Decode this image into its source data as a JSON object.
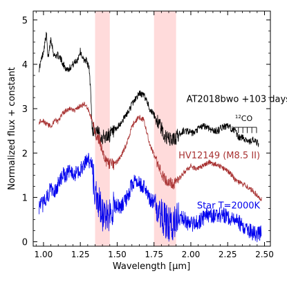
{
  "chart_data": {
    "type": "line",
    "xlabel": "Wavelength [μm]",
    "ylabel": "Normalized flux + constant",
    "xlim": [
      0.93,
      2.54
    ],
    "ylim": [
      -0.1,
      5.2
    ],
    "xticks": [
      "1.00",
      "1.25",
      "1.50",
      "1.75",
      "2.00",
      "2.25",
      "2.50"
    ],
    "xtick_values": [
      1.0,
      1.25,
      1.5,
      1.75,
      2.0,
      2.25,
      2.5
    ],
    "yticks": [
      "0",
      "1",
      "2",
      "3",
      "4",
      "5"
    ],
    "ytick_values": [
      0,
      1,
      2,
      3,
      4,
      5
    ],
    "grid": false,
    "shaded_regions": [
      {
        "x0": 1.35,
        "x1": 1.45,
        "color": "#ffcfcf"
      },
      {
        "x0": 1.75,
        "x1": 1.9,
        "color": "#ffcfcf"
      }
    ],
    "annotations": [
      {
        "text": "AT2018bwo +103 days",
        "x": 1.97,
        "y": 3.15,
        "color": "#000000"
      },
      {
        "text": "12CO",
        "x": 2.3,
        "y": 2.72,
        "color": "#000000",
        "sup": "12",
        "main": "CO"
      },
      {
        "text": "HV12149 (M8.5 II)",
        "x": 2.47,
        "y": 1.88,
        "color": "#a83232"
      },
      {
        "text": "Star T=2000K",
        "x": 2.47,
        "y": 0.75,
        "color": "#0000ee"
      }
    ],
    "co_bandheads": [
      2.294,
      2.323,
      2.353,
      2.383,
      2.414,
      2.446
    ],
    "series": [
      {
        "color": "#000000",
        "noise": 0.08,
        "x": [
          0.97,
          1.0,
          1.02,
          1.03,
          1.05,
          1.07,
          1.1,
          1.12,
          1.15,
          1.17,
          1.2,
          1.23,
          1.25,
          1.27,
          1.29,
          1.31,
          1.32,
          1.33,
          1.35,
          1.38,
          1.41,
          1.44,
          1.47,
          1.5,
          1.53,
          1.55,
          1.58,
          1.6,
          1.63,
          1.65,
          1.68,
          1.7,
          1.72,
          1.75,
          1.78,
          1.8,
          1.82,
          1.85,
          1.88,
          1.9,
          1.93,
          1.95,
          1.98,
          2.0,
          2.03,
          2.05,
          2.08,
          2.1,
          2.13,
          2.15,
          2.18,
          2.2,
          2.22,
          2.25,
          2.28,
          2.3,
          2.32,
          2.35,
          2.38,
          2.4,
          2.42,
          2.44,
          2.46
        ],
        "y": [
          3.9,
          4.3,
          4.7,
          4.1,
          4.6,
          4.2,
          4.2,
          4.1,
          3.9,
          3.9,
          4.0,
          4.1,
          4.3,
          4.1,
          4.1,
          3.9,
          3.4,
          2.55,
          2.5,
          2.4,
          2.35,
          2.4,
          2.45,
          2.55,
          2.7,
          2.8,
          2.95,
          3.1,
          3.25,
          3.35,
          3.3,
          3.2,
          3.0,
          2.85,
          2.7,
          2.55,
          2.4,
          2.3,
          2.3,
          2.35,
          2.45,
          2.5,
          2.5,
          2.45,
          2.45,
          2.55,
          2.6,
          2.6,
          2.55,
          2.5,
          2.5,
          2.55,
          2.6,
          2.6,
          2.55,
          2.5,
          2.35,
          2.35,
          2.3,
          2.25,
          2.3,
          2.25,
          2.2
        ]
      },
      {
        "color": "#a83232",
        "noise": 0.06,
        "x": [
          0.97,
          0.99,
          1.02,
          1.05,
          1.08,
          1.1,
          1.13,
          1.15,
          1.18,
          1.2,
          1.23,
          1.25,
          1.28,
          1.3,
          1.33,
          1.35,
          1.38,
          1.4,
          1.42,
          1.45,
          1.48,
          1.5,
          1.53,
          1.55,
          1.58,
          1.6,
          1.63,
          1.65,
          1.68,
          1.7,
          1.72,
          1.75,
          1.78,
          1.8,
          1.83,
          1.85,
          1.88,
          1.9,
          1.93,
          1.95,
          1.98,
          2.0,
          2.03,
          2.05,
          2.08,
          2.1,
          2.13,
          2.15,
          2.18,
          2.2,
          2.22,
          2.25,
          2.28,
          2.3,
          2.32,
          2.35,
          2.38,
          2.4,
          2.42,
          2.45,
          2.48
        ],
        "y": [
          2.7,
          2.75,
          2.65,
          2.6,
          2.75,
          2.7,
          2.9,
          2.95,
          3.0,
          2.95,
          3.0,
          3.05,
          3.1,
          3.0,
          2.75,
          2.45,
          2.3,
          2.05,
          1.85,
          1.75,
          1.75,
          1.8,
          1.95,
          2.1,
          2.35,
          2.6,
          2.75,
          2.8,
          2.75,
          2.5,
          2.2,
          1.95,
          1.7,
          1.55,
          1.4,
          1.35,
          1.3,
          1.35,
          1.45,
          1.55,
          1.65,
          1.7,
          1.65,
          1.65,
          1.7,
          1.75,
          1.8,
          1.75,
          1.75,
          1.7,
          1.65,
          1.6,
          1.5,
          1.4,
          1.35,
          1.3,
          1.25,
          1.2,
          1.15,
          1.05,
          0.95
        ]
      },
      {
        "color": "#0000ee",
        "noise": 0.18,
        "x": [
          0.97,
          1.0,
          1.03,
          1.05,
          1.08,
          1.1,
          1.13,
          1.15,
          1.18,
          1.2,
          1.23,
          1.25,
          1.27,
          1.3,
          1.33,
          1.35,
          1.38,
          1.4,
          1.42,
          1.45,
          1.48,
          1.5,
          1.53,
          1.55,
          1.58,
          1.6,
          1.63,
          1.65,
          1.68,
          1.7,
          1.72,
          1.75,
          1.78,
          1.8,
          1.82,
          1.85,
          1.88,
          1.9,
          1.93,
          1.95,
          1.98,
          2.0,
          2.03,
          2.05,
          2.08,
          2.1,
          2.13,
          2.15,
          2.18,
          2.2,
          2.22,
          2.25,
          2.28,
          2.3,
          2.32,
          2.35,
          2.38,
          2.4,
          2.42,
          2.45,
          2.48
        ],
        "y": [
          0.8,
          0.85,
          1.05,
          1.2,
          1.15,
          1.3,
          1.5,
          1.5,
          1.6,
          1.5,
          1.55,
          1.6,
          1.75,
          1.9,
          1.7,
          1.1,
          0.85,
          0.6,
          0.55,
          0.65,
          0.85,
          0.8,
          0.8,
          0.9,
          1.1,
          1.3,
          1.4,
          1.3,
          1.25,
          1.15,
          0.95,
          0.9,
          0.75,
          0.6,
          0.5,
          0.4,
          0.4,
          0.5,
          0.5,
          0.55,
          0.4,
          0.4,
          0.4,
          0.45,
          0.5,
          0.6,
          0.6,
          0.55,
          0.6,
          0.6,
          0.6,
          0.55,
          0.5,
          0.5,
          0.45,
          0.35,
          0.3,
          0.25,
          0.2,
          0.15,
          0.2
        ]
      }
    ]
  }
}
